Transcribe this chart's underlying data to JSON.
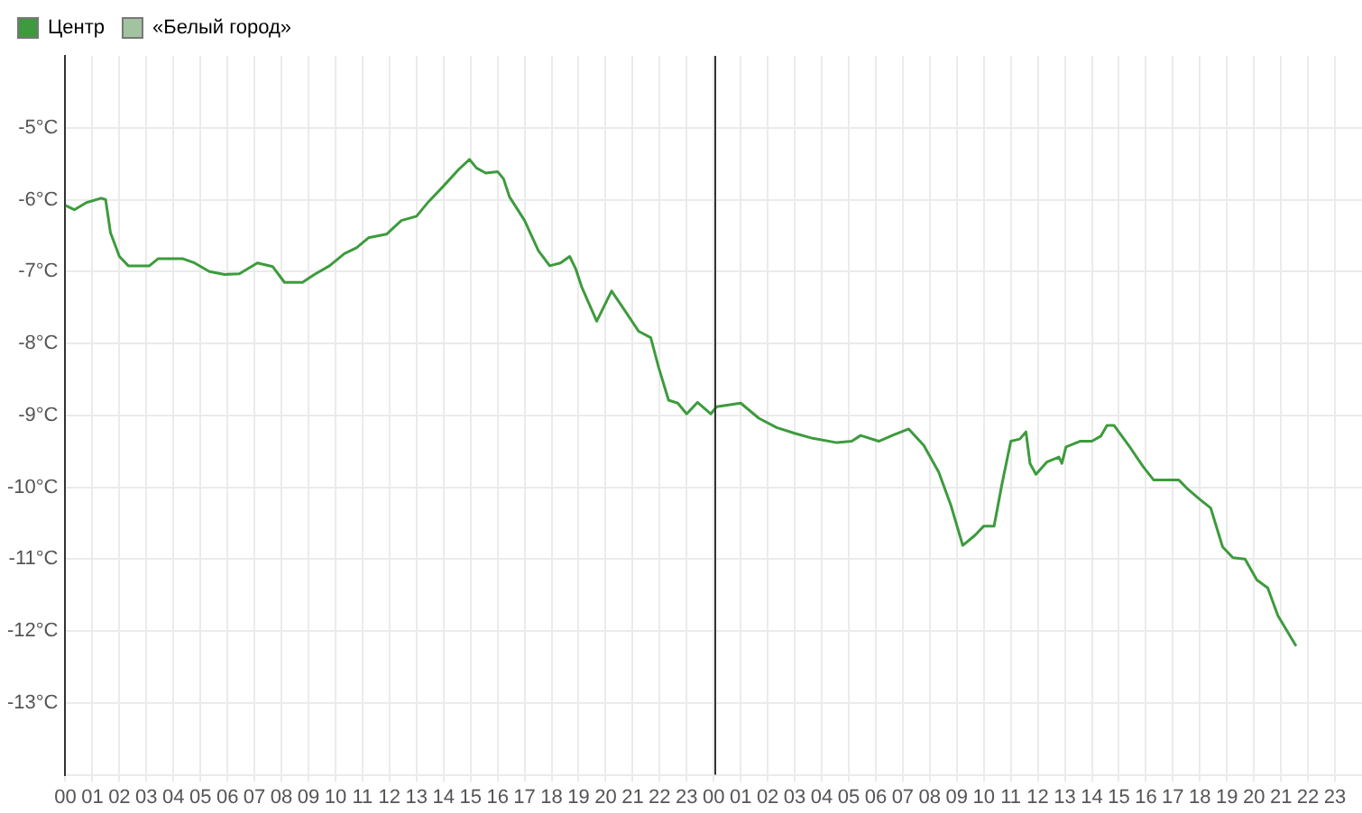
{
  "chart_data": {
    "type": "line",
    "xlim": [
      0,
      48
    ],
    "xticks": [
      {
        "value": 0,
        "label": "00"
      },
      {
        "value": 1,
        "label": "01"
      },
      {
        "value": 2,
        "label": "02"
      },
      {
        "value": 3,
        "label": "03"
      },
      {
        "value": 4,
        "label": "04"
      },
      {
        "value": 5,
        "label": "05"
      },
      {
        "value": 6,
        "label": "06"
      },
      {
        "value": 7,
        "label": "07"
      },
      {
        "value": 8,
        "label": "08"
      },
      {
        "value": 9,
        "label": "09"
      },
      {
        "value": 10,
        "label": "10"
      },
      {
        "value": 11,
        "label": "11"
      },
      {
        "value": 12,
        "label": "12"
      },
      {
        "value": 13,
        "label": "13"
      },
      {
        "value": 14,
        "label": "14"
      },
      {
        "value": 15,
        "label": "15"
      },
      {
        "value": 16,
        "label": "16"
      },
      {
        "value": 17,
        "label": "17"
      },
      {
        "value": 18,
        "label": "18"
      },
      {
        "value": 19,
        "label": "19"
      },
      {
        "value": 20,
        "label": "20"
      },
      {
        "value": 21,
        "label": "21"
      },
      {
        "value": 22,
        "label": "22"
      },
      {
        "value": 23,
        "label": "23"
      },
      {
        "value": 24,
        "label": "00"
      },
      {
        "value": 25,
        "label": "01"
      },
      {
        "value": 26,
        "label": "02"
      },
      {
        "value": 27,
        "label": "03"
      },
      {
        "value": 28,
        "label": "04"
      },
      {
        "value": 29,
        "label": "05"
      },
      {
        "value": 30,
        "label": "06"
      },
      {
        "value": 31,
        "label": "07"
      },
      {
        "value": 32,
        "label": "08"
      },
      {
        "value": 33,
        "label": "09"
      },
      {
        "value": 34,
        "label": "10"
      },
      {
        "value": 35,
        "label": "11"
      },
      {
        "value": 36,
        "label": "12"
      },
      {
        "value": 37,
        "label": "13"
      },
      {
        "value": 38,
        "label": "14"
      },
      {
        "value": 39,
        "label": "15"
      },
      {
        "value": 40,
        "label": "16"
      },
      {
        "value": 41,
        "label": "17"
      },
      {
        "value": 42,
        "label": "18"
      },
      {
        "value": 43,
        "label": "19"
      },
      {
        "value": 44,
        "label": "20"
      },
      {
        "value": 45,
        "label": "21"
      },
      {
        "value": 46,
        "label": "22"
      },
      {
        "value": 47,
        "label": "23"
      }
    ],
    "ylim": [
      -14,
      -4
    ],
    "yticks": [
      {
        "value": -5,
        "label": "-5°C"
      },
      {
        "value": -6,
        "label": "-6°C"
      },
      {
        "value": -7,
        "label": "-7°C"
      },
      {
        "value": -8,
        "label": "-8°C"
      },
      {
        "value": -9,
        "label": "-9°C"
      },
      {
        "value": -10,
        "label": "-10°C"
      },
      {
        "value": -11,
        "label": "-11°C"
      },
      {
        "value": -12,
        "label": "-12°C"
      },
      {
        "value": -13,
        "label": "-13°C"
      }
    ],
    "grid": true,
    "legend": "top left",
    "marker": "none",
    "line_style": "solid",
    "ref_lines": [
      {
        "axis": "x",
        "value": 24,
        "color": "#333333"
      }
    ],
    "series": [
      {
        "name": "Центр",
        "color": "#3d9b3d",
        "x": [
          0,
          0.33,
          0.78,
          1.33,
          1.49,
          1.67,
          2.0,
          2.33,
          3.11,
          3.44,
          4.33,
          4.78,
          5.33,
          5.89,
          6.44,
          7.11,
          7.67,
          8.11,
          8.78,
          9.22,
          9.78,
          10.33,
          10.78,
          11.22,
          11.89,
          12.44,
          13.0,
          13.44,
          14.0,
          14.56,
          14.96,
          15.22,
          15.56,
          16.0,
          16.22,
          16.44,
          17.0,
          17.51,
          17.93,
          18.33,
          18.67,
          18.89,
          19.11,
          19.67,
          20.22,
          20.78,
          21.22,
          21.67,
          21.96,
          22.33,
          22.67,
          23.0,
          23.4,
          23.89,
          24.11,
          25.0,
          25.67,
          26.33,
          27.0,
          27.67,
          28.56,
          29.11,
          29.44,
          30.11,
          30.67,
          31.22,
          31.78,
          32.33,
          32.78,
          33.22,
          33.67,
          34.0,
          34.38,
          34.67,
          35.0,
          35.33,
          35.56,
          35.71,
          35.93,
          36.33,
          36.78,
          36.89,
          37.04,
          37.56,
          38.0,
          38.33,
          38.56,
          38.82,
          39.44,
          39.89,
          40.29,
          41.22,
          41.56,
          42.0,
          42.4,
          42.84,
          43.22,
          43.67,
          44.11,
          44.51,
          44.89,
          45.56
        ],
        "values": [
          -6.08,
          -6.14,
          -6.04,
          -5.98,
          -6.0,
          -6.46,
          -6.79,
          -6.92,
          -6.92,
          -6.82,
          -6.82,
          -6.88,
          -7.0,
          -7.04,
          -7.03,
          -6.88,
          -6.93,
          -7.15,
          -7.15,
          -7.04,
          -6.92,
          -6.75,
          -6.67,
          -6.53,
          -6.48,
          -6.29,
          -6.23,
          -6.03,
          -5.81,
          -5.58,
          -5.44,
          -5.56,
          -5.63,
          -5.61,
          -5.71,
          -5.96,
          -6.29,
          -6.71,
          -6.92,
          -6.88,
          -6.79,
          -6.96,
          -7.21,
          -7.69,
          -7.27,
          -7.58,
          -7.83,
          -7.92,
          -8.33,
          -8.79,
          -8.83,
          -8.98,
          -8.82,
          -8.98,
          -8.88,
          -8.83,
          -9.04,
          -9.17,
          -9.25,
          -9.32,
          -9.38,
          -9.36,
          -9.28,
          -9.36,
          -9.27,
          -9.19,
          -9.42,
          -9.79,
          -10.25,
          -10.81,
          -10.67,
          -10.54,
          -10.54,
          -9.96,
          -9.36,
          -9.33,
          -9.23,
          -9.67,
          -9.82,
          -9.65,
          -9.58,
          -9.67,
          -9.44,
          -9.36,
          -9.36,
          -9.29,
          -9.14,
          -9.14,
          -9.46,
          -9.71,
          -9.9,
          -9.9,
          -10.03,
          -10.17,
          -10.29,
          -10.83,
          -10.98,
          -11.0,
          -11.29,
          -11.4,
          -11.79,
          -12.21
        ]
      },
      {
        "name": "«Белый город»",
        "color": "#a3c3a0"
      }
    ]
  }
}
